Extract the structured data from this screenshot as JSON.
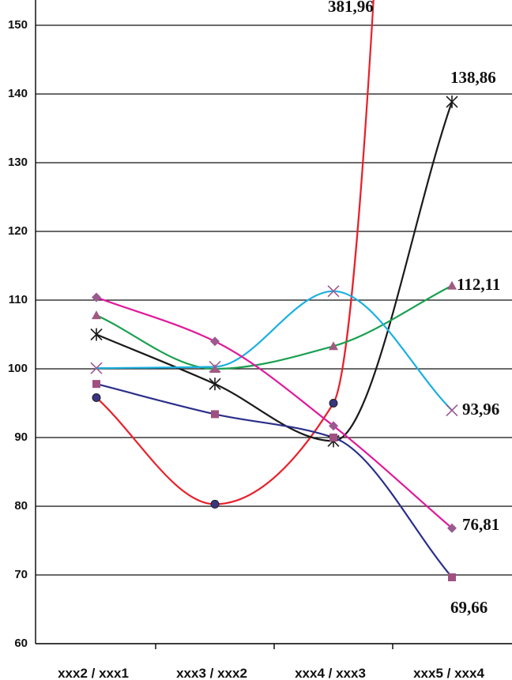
{
  "chart_data": {
    "type": "line",
    "categories": [
      "xxx2 / xxx1",
      "xxx3 / xxx2",
      "xxx4 / xxx3",
      "xxx5 / xxx4"
    ],
    "ylim": [
      60,
      150
    ],
    "yticks": [
      60,
      70,
      80,
      90,
      100,
      110,
      120,
      130,
      140,
      150
    ],
    "grid": true,
    "series": [
      {
        "color": "#e8202a",
        "marker": "circle",
        "marker_color": "#3a3580",
        "values": [
          95.8,
          80.3,
          95.0,
          381.96
        ],
        "value_labels": [
          null,
          null,
          null,
          "381,96"
        ]
      },
      {
        "color": "#1a1a1a",
        "marker": "star",
        "marker_color": "#1a1a1a",
        "values": [
          105.0,
          97.8,
          89.5,
          138.86
        ],
        "value_labels": [
          null,
          null,
          null,
          "138,86"
        ]
      },
      {
        "color": "#1aa050",
        "marker": "triangle",
        "marker_color": "#a05a80",
        "values": [
          107.8,
          100.0,
          103.3,
          112.11
        ],
        "value_labels": [
          null,
          null,
          null,
          "112,11"
        ]
      },
      {
        "color": "#1ab0e0",
        "marker": "x",
        "marker_color": "#9a5a90",
        "values": [
          100.1,
          100.3,
          111.3,
          93.96
        ],
        "value_labels": [
          null,
          null,
          null,
          "93,96"
        ]
      },
      {
        "color": "#e0199a",
        "marker": "diamond",
        "marker_color": "#9a5a90",
        "values": [
          110.4,
          104.0,
          91.7,
          76.81
        ],
        "value_labels": [
          null,
          null,
          null,
          "76,81"
        ]
      },
      {
        "color": "#2b2f8a",
        "marker": "square",
        "marker_color": "#a05080",
        "values": [
          97.8,
          93.4,
          90.0,
          69.66
        ],
        "value_labels": [
          null,
          null,
          null,
          "69,66"
        ]
      }
    ]
  }
}
